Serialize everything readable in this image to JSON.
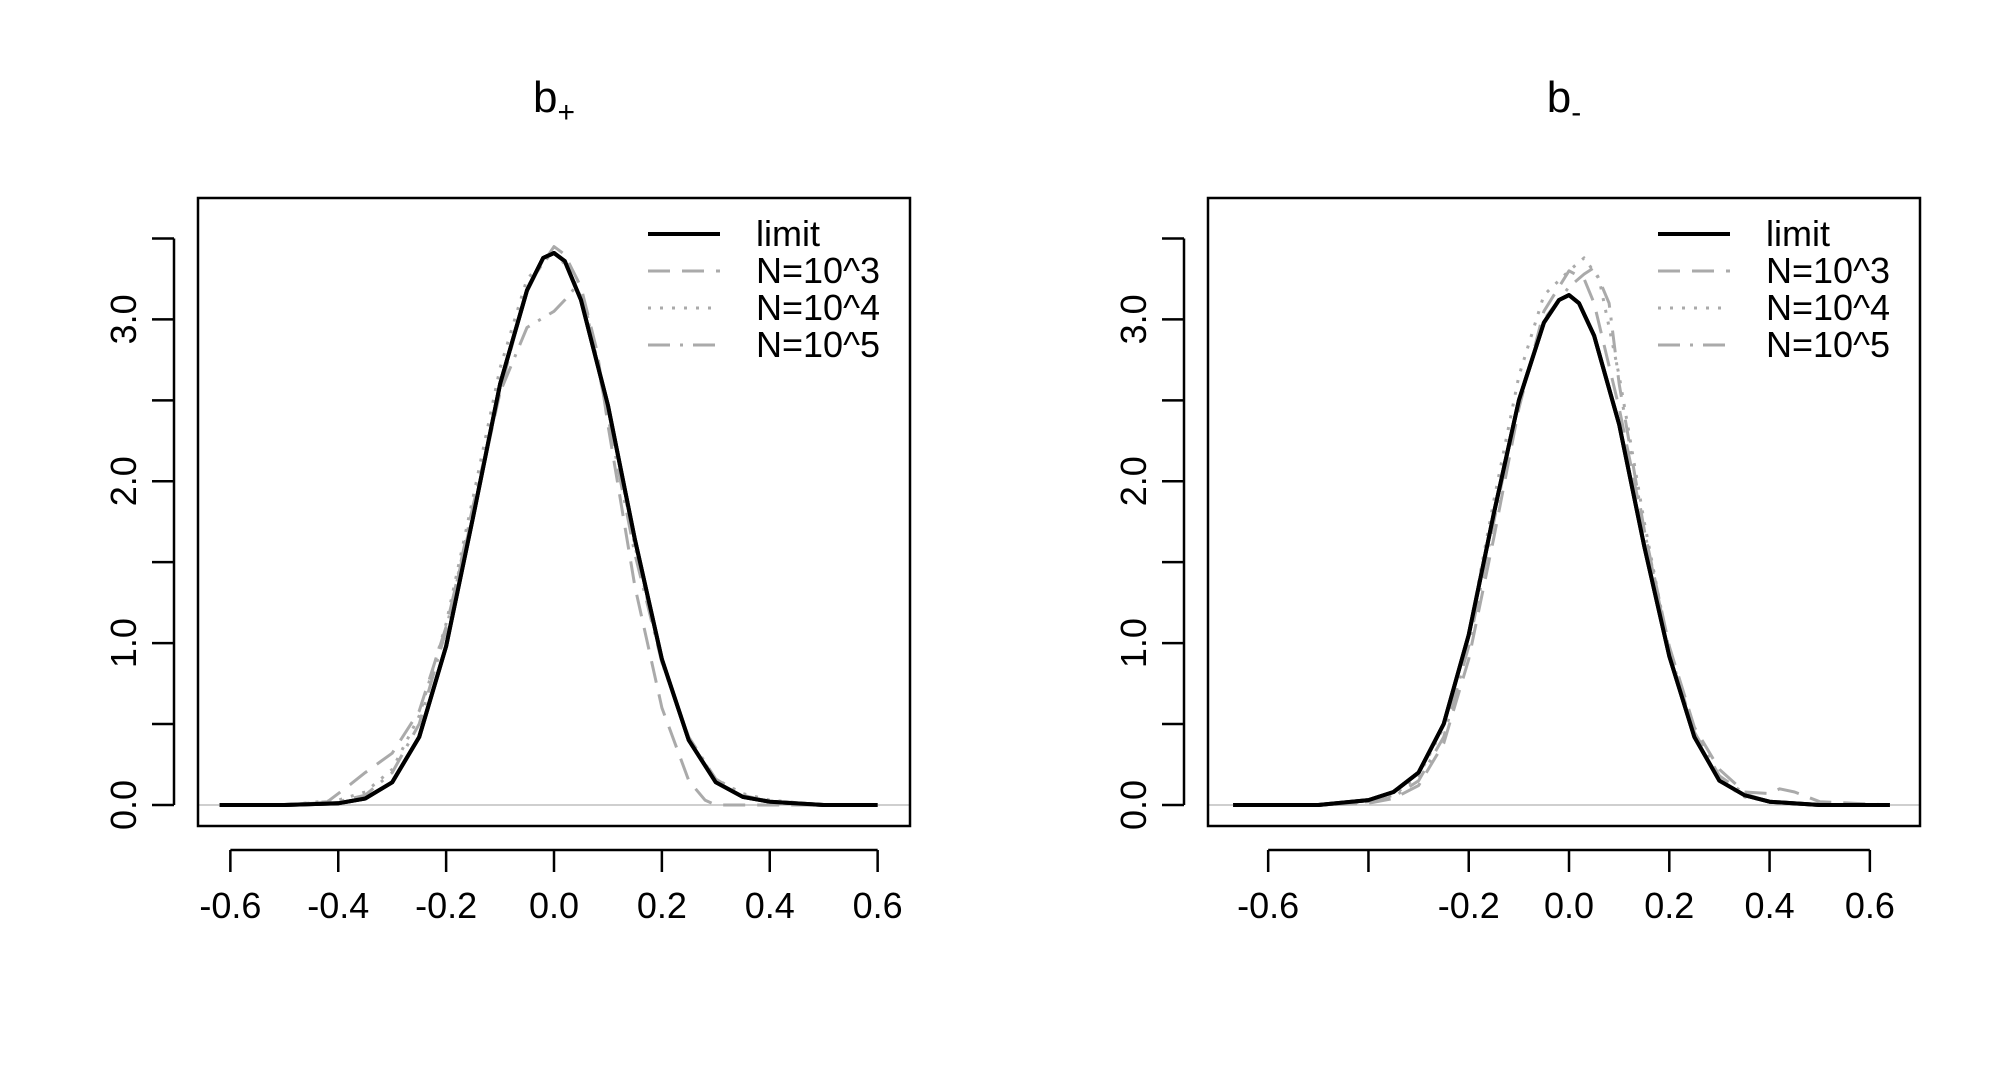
{
  "chart_data": [
    {
      "type": "line",
      "title": "b",
      "title_subscript": "+",
      "xlim": [
        -0.66,
        0.66
      ],
      "ylim": [
        -0.13,
        3.75
      ],
      "x_ticks": [
        -0.6,
        -0.4,
        -0.2,
        0.0,
        0.2,
        0.4,
        0.6
      ],
      "x_tick_labels": [
        "-0.6",
        "-0.4",
        "-0.2",
        "0.0",
        "0.2",
        "0.4",
        "0.6"
      ],
      "y_ticks": [
        0.0,
        0.5,
        1.0,
        1.5,
        2.0,
        2.5,
        3.0,
        3.5
      ],
      "y_tick_labels": [
        "0.0",
        "",
        "1.0",
        "",
        "2.0",
        "",
        "3.0",
        ""
      ],
      "baseline": 0,
      "legend": {
        "position": "top-right"
      },
      "series": [
        {
          "name": "limit",
          "color": "#000000",
          "dash": "solid",
          "width": 4,
          "x": [
            -0.62,
            -0.5,
            -0.4,
            -0.35,
            -0.3,
            -0.25,
            -0.2,
            -0.15,
            -0.1,
            -0.05,
            -0.02,
            0.0,
            0.02,
            0.05,
            0.1,
            0.15,
            0.2,
            0.25,
            0.3,
            0.35,
            0.4,
            0.5,
            0.6
          ],
          "y": [
            0.0,
            0.0,
            0.01,
            0.04,
            0.14,
            0.42,
            0.98,
            1.78,
            2.6,
            3.18,
            3.38,
            3.41,
            3.36,
            3.12,
            2.47,
            1.64,
            0.9,
            0.4,
            0.14,
            0.05,
            0.02,
            0.0,
            0.0
          ]
        },
        {
          "name": "N=10^3",
          "color": "#aaaaaa",
          "dash": "dashed",
          "width": 3,
          "x": [
            -0.62,
            -0.5,
            -0.42,
            -0.38,
            -0.35,
            -0.3,
            -0.25,
            -0.2,
            -0.15,
            -0.1,
            -0.05,
            0.0,
            0.02,
            0.05,
            0.08,
            0.1,
            0.15,
            0.2,
            0.25,
            0.28,
            0.3,
            0.35,
            0.45,
            0.6
          ],
          "y": [
            0.0,
            0.0,
            0.02,
            0.12,
            0.2,
            0.32,
            0.58,
            1.1,
            1.8,
            2.55,
            3.2,
            3.45,
            3.4,
            3.2,
            2.8,
            2.35,
            1.35,
            0.6,
            0.15,
            0.03,
            0.0,
            0.0,
            0.0,
            0.0
          ]
        },
        {
          "name": "N=10^4",
          "color": "#aaaaaa",
          "dash": "dotted",
          "width": 3,
          "x": [
            -0.62,
            -0.5,
            -0.4,
            -0.35,
            -0.3,
            -0.25,
            -0.2,
            -0.15,
            -0.1,
            -0.05,
            0.0,
            0.03,
            0.06,
            0.1,
            0.15,
            0.2,
            0.25,
            0.3,
            0.35,
            0.4,
            0.5,
            0.6
          ],
          "y": [
            0.0,
            0.0,
            0.03,
            0.08,
            0.22,
            0.55,
            1.12,
            1.9,
            2.7,
            3.25,
            3.42,
            3.3,
            3.05,
            2.45,
            1.6,
            0.88,
            0.4,
            0.16,
            0.07,
            0.03,
            0.0,
            0.0
          ]
        },
        {
          "name": "N=10^5",
          "color": "#aaaaaa",
          "dash": "dashdot",
          "width": 3,
          "x": [
            -0.62,
            -0.5,
            -0.4,
            -0.35,
            -0.3,
            -0.25,
            -0.2,
            -0.15,
            -0.1,
            -0.05,
            0.0,
            0.02,
            0.04,
            0.06,
            0.1,
            0.15,
            0.2,
            0.25,
            0.3,
            0.35,
            0.4,
            0.5,
            0.6
          ],
          "y": [
            0.0,
            0.0,
            0.02,
            0.06,
            0.2,
            0.5,
            1.08,
            1.85,
            2.55,
            2.95,
            3.05,
            3.12,
            3.2,
            3.05,
            2.4,
            1.55,
            0.88,
            0.42,
            0.16,
            0.06,
            0.02,
            0.0,
            0.0
          ]
        }
      ]
    },
    {
      "type": "line",
      "title": "b",
      "title_subscript": "-",
      "xlim": [
        -0.72,
        0.7
      ],
      "ylim": [
        -0.13,
        3.75
      ],
      "x_ticks": [
        -0.6,
        -0.4,
        -0.2,
        0.0,
        0.2,
        0.4,
        0.6
      ],
      "x_tick_labels": [
        "-0.6",
        "",
        "-0.2",
        "0.0",
        "0.2",
        "0.4",
        "0.6"
      ],
      "y_ticks": [
        0.0,
        0.5,
        1.0,
        1.5,
        2.0,
        2.5,
        3.0,
        3.5
      ],
      "y_tick_labels": [
        "0.0",
        "",
        "1.0",
        "",
        "2.0",
        "",
        "3.0",
        ""
      ],
      "baseline": 0,
      "legend": {
        "position": "top-right"
      },
      "series": [
        {
          "name": "limit",
          "color": "#000000",
          "dash": "solid",
          "width": 4,
          "x": [
            -0.67,
            -0.5,
            -0.4,
            -0.35,
            -0.3,
            -0.25,
            -0.2,
            -0.15,
            -0.1,
            -0.05,
            -0.02,
            0.0,
            0.02,
            0.05,
            0.1,
            0.15,
            0.2,
            0.25,
            0.3,
            0.35,
            0.4,
            0.5,
            0.64
          ],
          "y": [
            0.0,
            0.0,
            0.03,
            0.08,
            0.2,
            0.5,
            1.05,
            1.8,
            2.5,
            2.98,
            3.12,
            3.15,
            3.1,
            2.9,
            2.35,
            1.6,
            0.92,
            0.42,
            0.15,
            0.06,
            0.02,
            0.0,
            0.0
          ]
        },
        {
          "name": "N=10^3",
          "color": "#aaaaaa",
          "dash": "dashed",
          "width": 3,
          "x": [
            -0.67,
            -0.5,
            -0.4,
            -0.35,
            -0.3,
            -0.25,
            -0.2,
            -0.15,
            -0.1,
            -0.05,
            0.0,
            0.03,
            0.05,
            0.1,
            0.15,
            0.2,
            0.25,
            0.3,
            0.35,
            0.4,
            0.42,
            0.45,
            0.5,
            0.64
          ],
          "y": [
            0.0,
            0.0,
            0.01,
            0.04,
            0.12,
            0.38,
            0.9,
            1.65,
            2.45,
            3.05,
            3.3,
            3.25,
            3.1,
            2.45,
            1.7,
            0.98,
            0.48,
            0.22,
            0.08,
            0.07,
            0.1,
            0.08,
            0.02,
            0.0
          ]
        },
        {
          "name": "N=10^4",
          "color": "#aaaaaa",
          "dash": "dotted",
          "width": 3,
          "x": [
            -0.67,
            -0.5,
            -0.4,
            -0.35,
            -0.3,
            -0.25,
            -0.2,
            -0.15,
            -0.1,
            -0.05,
            0.0,
            0.03,
            0.06,
            0.1,
            0.15,
            0.2,
            0.25,
            0.3,
            0.35,
            0.4,
            0.5,
            0.64
          ],
          "y": [
            0.0,
            0.0,
            0.02,
            0.06,
            0.18,
            0.48,
            1.05,
            1.88,
            2.65,
            3.15,
            3.3,
            3.38,
            3.25,
            2.65,
            1.75,
            0.95,
            0.42,
            0.15,
            0.05,
            0.02,
            0.0,
            0.0
          ]
        },
        {
          "name": "N=10^5",
          "color": "#aaaaaa",
          "dash": "dashdot",
          "width": 3,
          "x": [
            -0.67,
            -0.5,
            -0.4,
            -0.35,
            -0.3,
            -0.25,
            -0.2,
            -0.15,
            -0.1,
            -0.05,
            0.0,
            0.03,
            0.05,
            0.08,
            0.1,
            0.15,
            0.2,
            0.25,
            0.3,
            0.35,
            0.4,
            0.5,
            0.64
          ],
          "y": [
            0.0,
            0.0,
            0.02,
            0.05,
            0.15,
            0.42,
            0.98,
            1.75,
            2.5,
            3.0,
            3.2,
            3.28,
            3.32,
            3.1,
            2.6,
            1.7,
            0.95,
            0.45,
            0.18,
            0.07,
            0.02,
            0.0,
            0.0
          ]
        }
      ]
    }
  ]
}
